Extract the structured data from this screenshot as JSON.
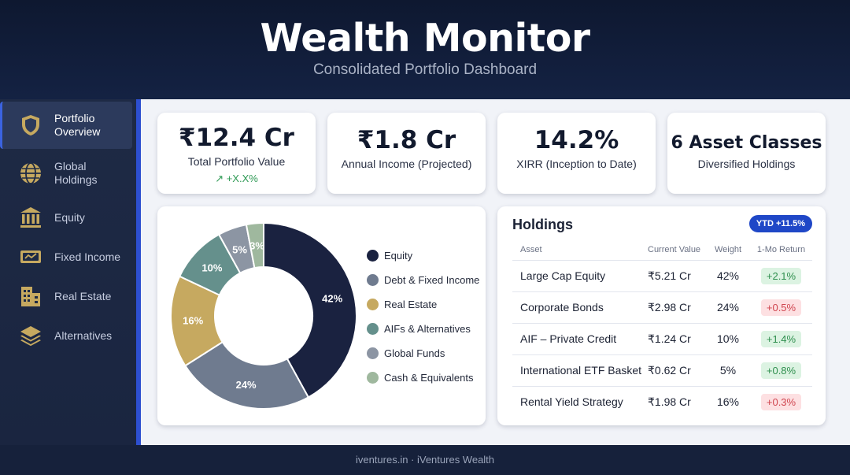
{
  "header": {
    "title": "Wealth Monitor",
    "subtitle": "Consolidated Portfolio Dashboard"
  },
  "sidebar": {
    "items": [
      {
        "label": "Portfolio Overview",
        "icon": "shield-icon",
        "active": true
      },
      {
        "label": "Global Holdings",
        "icon": "globe-icon",
        "active": false
      },
      {
        "label": "Equity",
        "icon": "bank-icon",
        "active": false
      },
      {
        "label": "Fixed Income",
        "icon": "banknote-icon",
        "active": false
      },
      {
        "label": "Real Estate",
        "icon": "building-icon",
        "active": false
      },
      {
        "label": "Alternatives",
        "icon": "layers-icon",
        "active": false
      }
    ]
  },
  "kpis": [
    {
      "value": "₹12.4 Cr",
      "caption": "Total Portfolio Value",
      "delta": "↗ +X.X%"
    },
    {
      "value": "₹1.8 Cr",
      "caption": "Annual Income (Projected)"
    },
    {
      "value": "14.2%",
      "caption": "XIRR (Inception to Date)"
    },
    {
      "value": "6 Asset Classes",
      "caption": "Diversified Holdings"
    }
  ],
  "chart_data": {
    "type": "pie",
    "title": "",
    "categories": [
      "Equity",
      "Debt & Fixed Income",
      "Real Estate",
      "AIFs & Alternatives",
      "Global Funds",
      "Cash & Equivalents"
    ],
    "values": [
      42,
      24,
      16,
      10,
      5,
      3
    ],
    "labels": [
      "42%",
      "24%",
      "16%",
      "10%",
      "5%",
      "3%"
    ],
    "colors": [
      "#1a2240",
      "#6f7b8f",
      "#c6a960",
      "#65908c",
      "#8c95a3",
      "#9fb89e"
    ],
    "donut": true,
    "legend_position": "right"
  },
  "holdings": {
    "title": "Holdings",
    "badge": "YTD +11.5%",
    "columns": [
      "Asset",
      "Current Value",
      "Weight",
      "1-Mo Return"
    ],
    "rows": [
      {
        "asset": "Large Cap Equity",
        "value": "₹5.21 Cr",
        "weight": "42%",
        "return": "+2.1%",
        "trend": "positive"
      },
      {
        "asset": "Corporate Bonds",
        "value": "₹2.98 Cr",
        "weight": "24%",
        "return": "+0.5%",
        "trend": "negative"
      },
      {
        "asset": "AIF – Private Credit",
        "value": "₹1.24 Cr",
        "weight": "10%",
        "return": "+1.4%",
        "trend": "positive"
      },
      {
        "asset": "International ETF Basket",
        "value": "₹0.62 Cr",
        "weight": "5%",
        "return": "+0.8%",
        "trend": "positive"
      },
      {
        "asset": "Rental Yield Strategy",
        "value": "₹1.98 Cr",
        "weight": "16%",
        "return": "+0.3%",
        "trend": "negative"
      }
    ]
  },
  "footer": {
    "text": "iventures.in · iVentures Wealth"
  },
  "colors": {
    "accent": "#2d4fd0",
    "positive": "#2f8f4e",
    "negative": "#d0454f",
    "badge": "#1f47c7"
  }
}
